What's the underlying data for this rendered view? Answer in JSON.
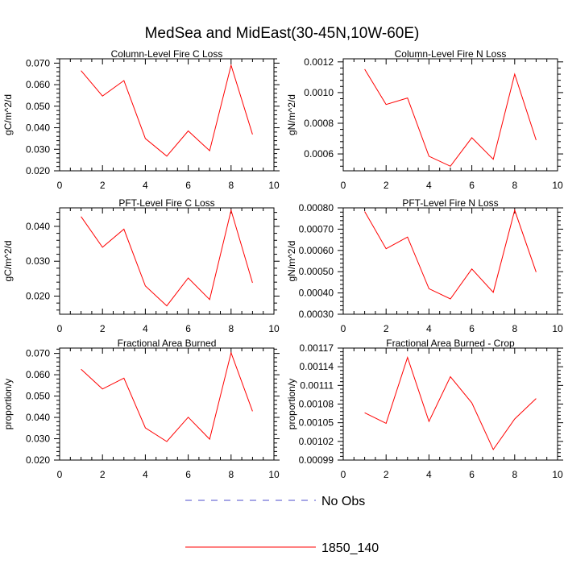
{
  "figure": {
    "title": "MedSea and MidEast(30-45N,10W-60E)",
    "legend": [
      {
        "label": "No Obs",
        "color": "#4d4dcc",
        "dash": true
      },
      {
        "label": "1850_140",
        "color": "#ff0000",
        "dash": false
      }
    ]
  },
  "chart_data": [
    {
      "type": "line",
      "title": "Column-Level Fire C Loss",
      "ylabel": "gC/m^2/d",
      "xlim": [
        0,
        10
      ],
      "xticks": [
        "0",
        "2",
        "4",
        "6",
        "8",
        "10"
      ],
      "ylim": [
        0.02,
        0.072
      ],
      "yticks": [
        "0.020",
        "0.030",
        "0.040",
        "0.050",
        "0.060",
        "0.070"
      ],
      "x": [
        1,
        2,
        3,
        4,
        5,
        6,
        7,
        8,
        9
      ],
      "series": [
        {
          "name": "1850_140",
          "color": "#ff0000",
          "values": [
            0.0665,
            0.0547,
            0.0619,
            0.035,
            0.0268,
            0.0385,
            0.0293,
            0.069,
            0.0369
          ]
        }
      ]
    },
    {
      "type": "line",
      "title": "Column-Level Fire N Loss",
      "ylabel": "gN/m^2/d",
      "xlim": [
        0,
        10
      ],
      "xticks": [
        "0",
        "2",
        "4",
        "6",
        "8",
        "10"
      ],
      "ylim": [
        0.00049,
        0.00122
      ],
      "yticks": [
        "0.0006",
        "0.0008",
        "0.0010",
        "0.0012"
      ],
      "x": [
        1,
        2,
        3,
        4,
        5,
        6,
        7,
        8,
        9
      ],
      "series": [
        {
          "name": "1850_140",
          "color": "#ff0000",
          "values": [
            0.001152,
            0.000922,
            0.000965,
            0.000585,
            0.00052,
            0.000706,
            0.000565,
            0.00112,
            0.00069
          ]
        }
      ]
    },
    {
      "type": "line",
      "title": "PFT-Level Fire C Loss",
      "ylabel": "gC/m^2/d",
      "xlim": [
        0,
        10
      ],
      "xticks": [
        "0",
        "2",
        "4",
        "6",
        "8",
        "10"
      ],
      "ylim": [
        0.0148,
        0.0453
      ],
      "yticks": [
        "0.020",
        "0.030",
        "0.040"
      ],
      "x": [
        1,
        2,
        3,
        4,
        5,
        6,
        7,
        8,
        9
      ],
      "series": [
        {
          "name": "1850_140",
          "color": "#ff0000",
          "values": [
            0.0428,
            0.034,
            0.0392,
            0.0229,
            0.0172,
            0.0252,
            0.019,
            0.0446,
            0.0238
          ]
        }
      ]
    },
    {
      "type": "line",
      "title": "PFT-Level Fire N Loss",
      "ylabel": "gN/m^2/d",
      "xlim": [
        0,
        10
      ],
      "xticks": [
        "0",
        "2",
        "4",
        "6",
        "8",
        "10"
      ],
      "ylim": [
        0.0003,
        0.0008
      ],
      "yticks": [
        "0.00030",
        "0.00040",
        "0.00050",
        "0.00060",
        "0.00070",
        "0.00080"
      ],
      "x": [
        1,
        2,
        3,
        4,
        5,
        6,
        7,
        8,
        9
      ],
      "series": [
        {
          "name": "1850_140",
          "color": "#ff0000",
          "values": [
            0.000783,
            0.000608,
            0.000663,
            0.00042,
            0.000372,
            0.000513,
            0.000403,
            0.000789,
            0.000498
          ]
        }
      ]
    },
    {
      "type": "line",
      "title": "Fractional Area Burned",
      "ylabel": "proportion/y",
      "xlim": [
        0,
        10
      ],
      "xticks": [
        "0",
        "2",
        "4",
        "6",
        "8",
        "10"
      ],
      "ylim": [
        0.02,
        0.0725
      ],
      "yticks": [
        "0.020",
        "0.030",
        "0.040",
        "0.050",
        "0.060",
        "0.070"
      ],
      "x": [
        1,
        2,
        3,
        4,
        5,
        6,
        7,
        8,
        9
      ],
      "series": [
        {
          "name": "1850_140",
          "color": "#ff0000",
          "values": [
            0.0626,
            0.0533,
            0.0584,
            0.0351,
            0.0287,
            0.0401,
            0.0298,
            0.0703,
            0.0429
          ]
        }
      ]
    },
    {
      "type": "line",
      "title": "Fractional Area Burned - Crop",
      "ylabel": "proportion/y",
      "xlim": [
        0,
        10
      ],
      "xticks": [
        "0",
        "2",
        "4",
        "6",
        "8",
        "10"
      ],
      "ylim": [
        0.00099,
        0.00117
      ],
      "yticks": [
        "0.00099",
        "0.00102",
        "0.00105",
        "0.00108",
        "0.00111",
        "0.00114",
        "0.00117"
      ],
      "x": [
        1,
        2,
        3,
        4,
        5,
        6,
        7,
        8,
        9
      ],
      "series": [
        {
          "name": "1850_140",
          "color": "#ff0000",
          "values": [
            0.001066,
            0.001049,
            0.001155,
            0.001052,
            0.001124,
            0.001082,
            0.001007,
            0.001056,
            0.001089
          ]
        }
      ]
    }
  ]
}
